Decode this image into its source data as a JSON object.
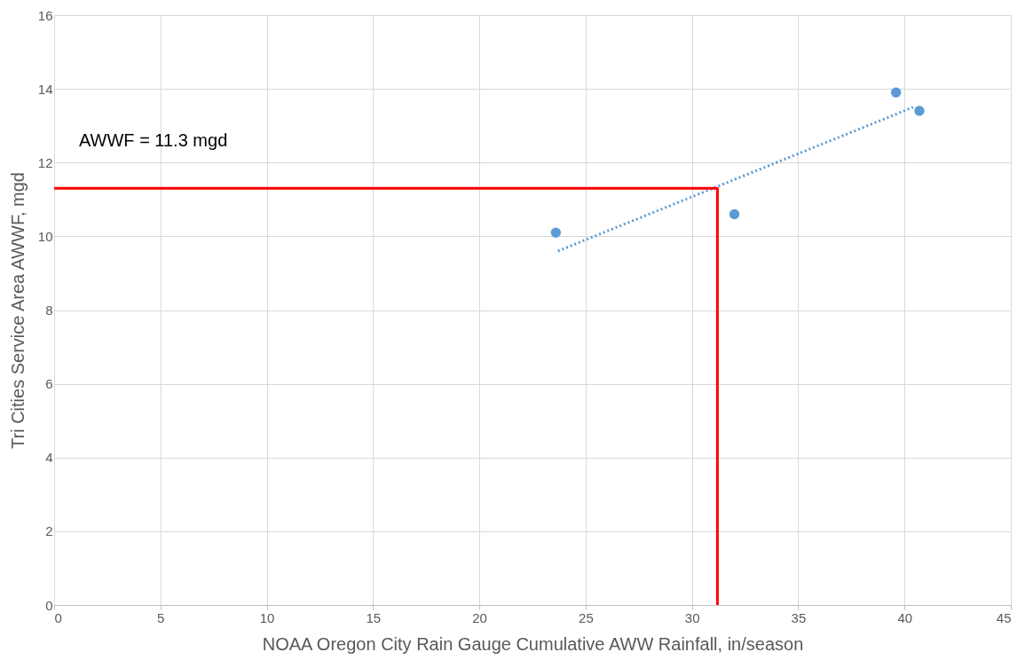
{
  "chart_data": {
    "type": "scatter",
    "xlabel": "NOAA Oregon City Rain Gauge Cumulative AWW Rainfall, in/season",
    "ylabel": "Tri Cities Service Area AWWF, mgd",
    "series": [
      {
        "color": "#5b9bd5",
        "marker": "circle",
        "x": [
          23.6,
          32.0,
          39.6,
          40.7
        ],
        "values": [
          10.1,
          10.6,
          13.9,
          13.4
        ]
      },
      {
        "type": "line",
        "color": "#5b9bd5",
        "line_style": "dotted",
        "marker": "none",
        "x": [
          23.7,
          40.4
        ],
        "values": [
          9.6,
          13.5
        ]
      },
      {
        "type": "line",
        "color": "#ff0000",
        "line_style": "solid",
        "marker": "none",
        "x": [
          0,
          31.2,
          31.2
        ],
        "values": [
          11.3,
          11.3,
          0
        ]
      }
    ],
    "annotations": [
      "AWWF = 11.3 mgd"
    ],
    "xlim": [
      0,
      45
    ],
    "xticks": [
      0,
      5,
      10,
      15,
      20,
      25,
      30,
      35,
      40,
      45
    ],
    "ylim": [
      0,
      16
    ],
    "yticks": [
      0,
      2,
      4,
      6,
      8,
      10,
      12,
      14,
      16
    ],
    "grid": true
  }
}
